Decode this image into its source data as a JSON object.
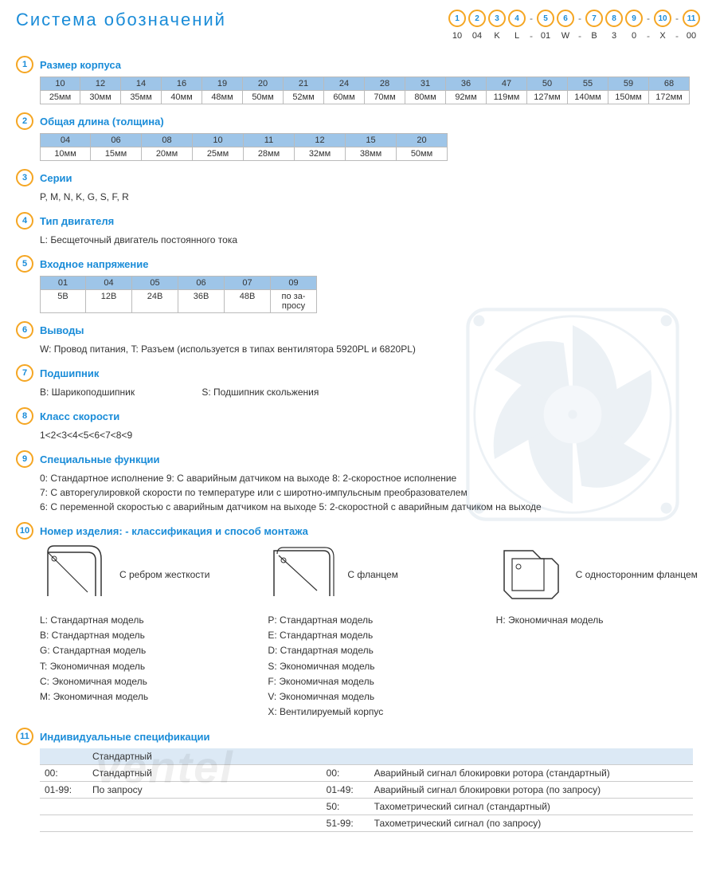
{
  "title": "Система обозначений",
  "code_positions": [
    "1",
    "2",
    "3",
    "4",
    "5",
    "6",
    "7",
    "8",
    "9",
    "10",
    "11"
  ],
  "code_values": [
    "10",
    "04",
    "K",
    "L",
    "01",
    "W",
    "B",
    "3",
    "0",
    "X",
    "00"
  ],
  "dash_after": [
    3,
    5,
    8,
    9
  ],
  "colors": {
    "accent": "#1a8cd8",
    "circle": "#f5a623",
    "header_bg": "#9ec5e8"
  },
  "s1": {
    "title": "Размер корпуса",
    "headers": [
      "10",
      "12",
      "14",
      "16",
      "19",
      "20",
      "21",
      "24",
      "28",
      "31",
      "36",
      "47",
      "50",
      "55",
      "59",
      "68"
    ],
    "values": [
      "25мм",
      "30мм",
      "35мм",
      "40мм",
      "48мм",
      "50мм",
      "52мм",
      "60мм",
      "70мм",
      "80мм",
      "92мм",
      "119мм",
      "127мм",
      "140мм",
      "150мм",
      "172мм"
    ]
  },
  "s2": {
    "title": "Общая длина (толщина)",
    "headers": [
      "04",
      "06",
      "08",
      "10",
      "11",
      "12",
      "15",
      "20"
    ],
    "values": [
      "10мм",
      "15мм",
      "20мм",
      "25мм",
      "28мм",
      "32мм",
      "38мм",
      "50мм"
    ]
  },
  "s3": {
    "title": "Серии",
    "text": "P, M, N, K, G, S, F, R"
  },
  "s4": {
    "title": "Тип двигателя",
    "text": "L: Бесщеточный двигатель постоянного тока"
  },
  "s5": {
    "title": "Входное напряжение",
    "headers": [
      "01",
      "04",
      "05",
      "06",
      "07",
      "09"
    ],
    "values": [
      "5В",
      "12В",
      "24В",
      "36В",
      "48В",
      "по за-\nпросу"
    ]
  },
  "s6": {
    "title": "Выводы",
    "text": "W: Провод питания, T: Разъем (используется в типах вентилятора  5920PL и 6820PL)"
  },
  "s7": {
    "title": "Подшипник",
    "text_a": "B: Шарикоподшипник",
    "text_b": "S: Подшипник скольжения"
  },
  "s8": {
    "title": "Класс скорости",
    "text": "1<2<3<4<5<6<7<8<9"
  },
  "s9": {
    "title": "Специальные функции",
    "line1": "0: Стандартное исполнение   9: С аварийным датчиком на выходе   8: 2-скоростное исполнение",
    "line2": "7: С авторегулировкой скорости по температуре или с широтно-импульсным преобразователем",
    "line3": "6: С переменной скоростью с аварийным датчиком на выходе   5: 2-скоростной с аварийным датчиком на выходе"
  },
  "s10": {
    "title": "Номер изделия: - классификация  и способ монтажа",
    "mounts": [
      {
        "label": "С ребром жесткости"
      },
      {
        "label": "С фланцем"
      },
      {
        "label": "С односторонним фланцем"
      }
    ],
    "col1": [
      "L:  Стандартная модель",
      "B:  Стандартная модель",
      "G:  Стандартная модель",
      "T:  Экономичная модель",
      "C:  Экономичная модель",
      "M:  Экономичная модель"
    ],
    "col2": [
      "P:  Стандартная модель",
      "E:  Стандартная модель",
      "D:  Стандартная модель",
      "S:  Экономичная модель",
      "F:  Экономичная модель",
      "V:  Экономичная модель",
      "X:  Вентилируемый корпус"
    ],
    "col3": [
      "H:  Экономичная модель"
    ]
  },
  "s11": {
    "title": "Индивидуальные спецификации",
    "header": "Стандартный",
    "rows": [
      {
        "c1": "00:",
        "c2": "Стандартный",
        "c3": "00:",
        "c4": "Аварийный сигнал блокировки ротора (стандартный)"
      },
      {
        "c1": "01-99:",
        "c2": "По запросу",
        "c3": "01-49:",
        "c4": "Аварийный сигнал блокировки ротора (по запросу)"
      },
      {
        "c1": "",
        "c2": "",
        "c3": "50:",
        "c4": "Тахометрический сигнал (стандартный)"
      },
      {
        "c1": "",
        "c2": "",
        "c3": "51-99:",
        "c4": "Тахометрический сигнал (по запросу)"
      }
    ]
  },
  "watermark": "ventel"
}
